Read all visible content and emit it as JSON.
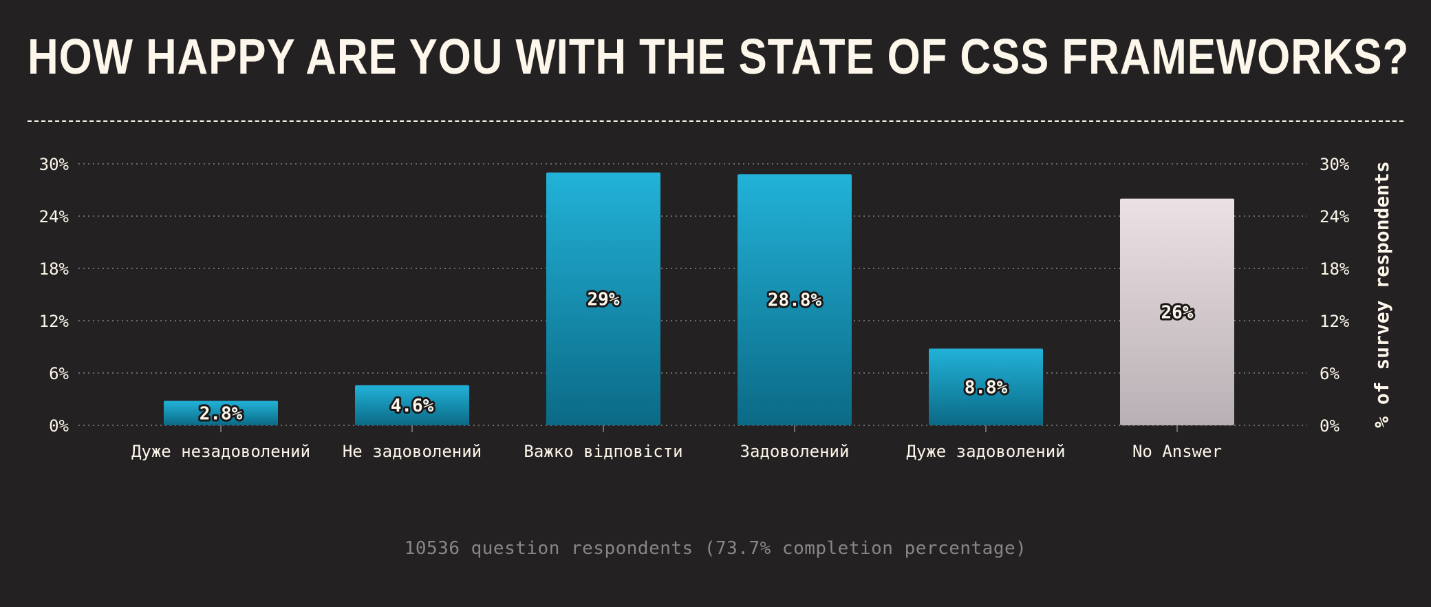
{
  "title": "HOW HAPPY ARE YOU WITH THE STATE OF CSS FRAMEWORKS?",
  "footer": "10536 question respondents (73.7% completion percentage)",
  "colors": {
    "background": "#242123",
    "text": "#fdf6ea",
    "bar_top": "#22b2d8",
    "bar_bottom": "#0b6a86",
    "na_top": "#ece1e5",
    "na_bottom": "#b8b0b4",
    "grid": "#8a8688",
    "muted": "#8a8688"
  },
  "chart_data": {
    "type": "bar",
    "categories": [
      "Дуже незадоволений",
      "Не задоволений",
      "Важко відповісти",
      "Задоволений",
      "Дуже задоволений",
      "No Answer"
    ],
    "values": [
      2.8,
      4.6,
      29,
      28.8,
      8.8,
      26
    ],
    "value_labels": [
      "2.8%",
      "4.6%",
      "29%",
      "28.8%",
      "8.8%",
      "26%"
    ],
    "y_ticks": [
      0,
      6,
      12,
      18,
      24,
      30
    ],
    "y_tick_labels": [
      "0%",
      "6%",
      "12%",
      "18%",
      "24%",
      "30%"
    ],
    "ylim": [
      0,
      30
    ],
    "ylabel": "% of survey respondents",
    "grid": true,
    "right_axis": true
  }
}
